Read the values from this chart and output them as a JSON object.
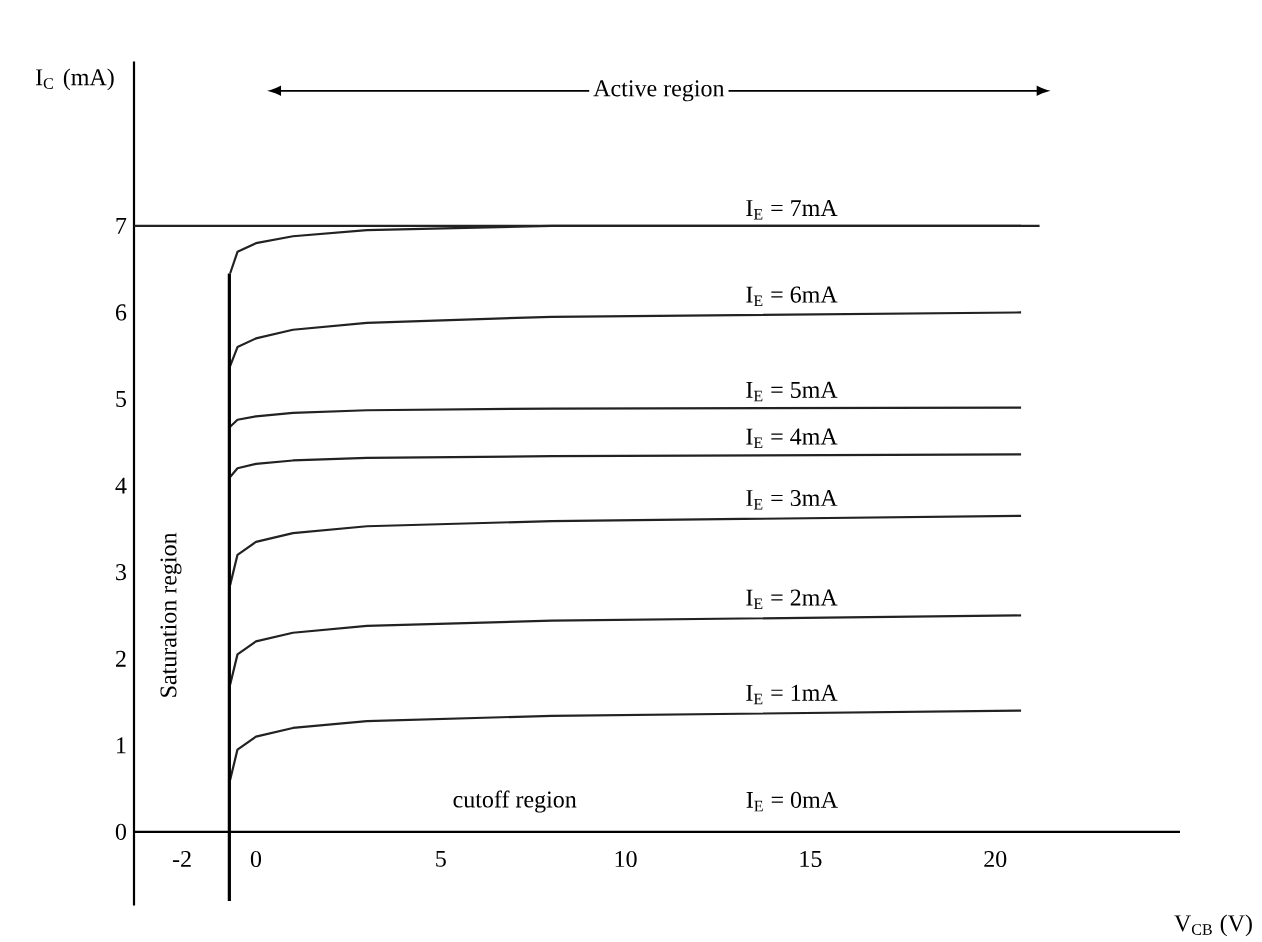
{
  "chart_data": {
    "type": "line",
    "xlabel": "V$_{CB}$ (V)",
    "ylabel": "I$_{C}$ (mA)",
    "x": [
      -0.7,
      -0.5,
      0,
      1,
      3,
      8,
      20.7
    ],
    "series": [
      {
        "name": "I$_{E}$ = 7mA",
        "color": "#222222",
        "values": [
          6.45,
          6.7,
          6.8,
          6.88,
          6.95,
          7,
          7
        ]
      },
      {
        "name": "I$_{E}$ = 6mA",
        "color": "#222222",
        "values": [
          5.38,
          5.6,
          5.7,
          5.8,
          5.88,
          5.95,
          6
        ]
      },
      {
        "name": "I$_{E}$ = 5mA",
        "color": "#222222",
        "values": [
          4.68,
          4.76,
          4.8,
          4.84,
          4.87,
          4.89,
          4.9
        ]
      },
      {
        "name": "I$_{E}$ = 4mA",
        "color": "#222222",
        "values": [
          4.1,
          4.2,
          4.25,
          4.29,
          4.32,
          4.34,
          4.36
        ]
      },
      {
        "name": "I$_{E}$ = 3mA",
        "color": "#222222",
        "values": [
          2.85,
          3.2,
          3.35,
          3.45,
          3.53,
          3.59,
          3.65
        ]
      },
      {
        "name": "I$_{E}$ = 2mA",
        "color": "#222222",
        "values": [
          1.7,
          2.05,
          2.2,
          2.3,
          2.38,
          2.44,
          2.5
        ]
      },
      {
        "name": "I$_{E}$ = 1mA",
        "color": "#222222",
        "values": [
          0.6,
          0.95,
          1.1,
          1.2,
          1.28,
          1.34,
          1.4
        ]
      },
      {
        "color": "#000000",
        "x": [
          -0.72,
          -0.72
        ],
        "values": [
          -0.8,
          6.45
        ]
      }
    ],
    "ref_lines": [
      {
        "axis": "y",
        "value": 7,
        "color": "#222222"
      }
    ],
    "annotations": [
      "Active region",
      "Saturation region",
      "cutoff region",
      "I$_{E}$ = 0mA"
    ],
    "xlim": [
      -3.3,
      25
    ],
    "ylim": [
      -0.85,
      8.9
    ],
    "xticks": [
      -2,
      0,
      5,
      10,
      15,
      20
    ],
    "yticks": [
      0,
      1,
      2,
      3,
      4,
      5,
      6,
      7
    ]
  }
}
